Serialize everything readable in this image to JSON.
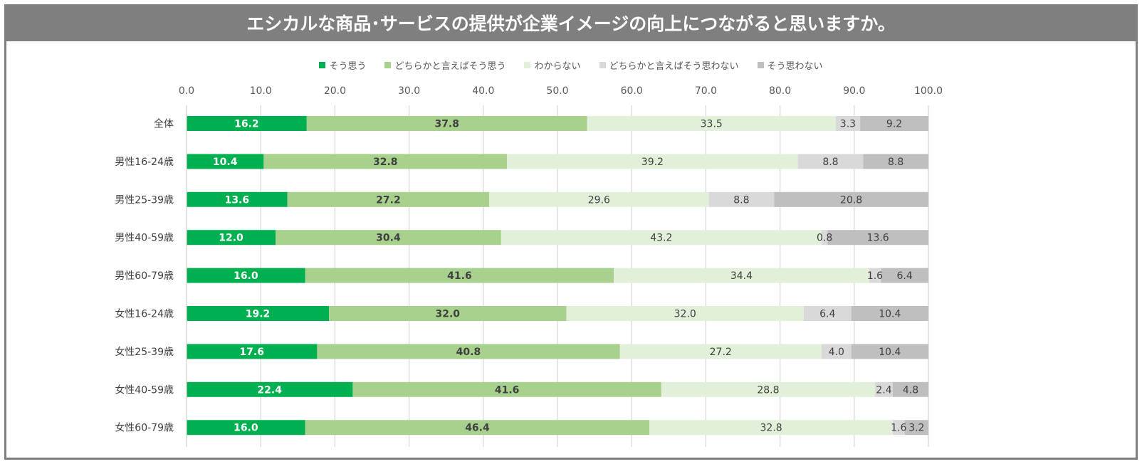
{
  "title": "エシカルな商品･サービスの提供が企業イメージの向上につながると思いますか。",
  "chart_data": {
    "type": "bar",
    "orientation": "horizontal",
    "stacked": true,
    "title": "エシカルな商品･サービスの提供が企業イメージの向上につながると思いますか。",
    "xlim": [
      0,
      100
    ],
    "xticks": [
      "0.0",
      "10.0",
      "20.0",
      "30.0",
      "40.0",
      "50.0",
      "60.0",
      "70.0",
      "80.0",
      "90.0",
      "100.0"
    ],
    "grid": true,
    "legend_position": "top",
    "categories": [
      "全体",
      "男性16-24歳",
      "男性25-39歳",
      "男性40-59歳",
      "男性60-79歳",
      "女性16-24歳",
      "女性25-39歳",
      "女性40-59歳",
      "女性60-79歳"
    ],
    "series": [
      {
        "name": "そう思う",
        "color": "#00b050",
        "label_color": "#ffffff",
        "label_bold": true,
        "values": [
          16.2,
          10.4,
          13.6,
          12.0,
          16.0,
          19.2,
          17.6,
          22.4,
          16.0
        ],
        "labels": [
          "16.2",
          "10.4",
          "13.6",
          "12.0",
          "16.0",
          "19.2",
          "17.6",
          "22.4",
          "16.0"
        ]
      },
      {
        "name": "どちらかと言えばそう思う",
        "color": "#a9d18e",
        "label_color": "#404040",
        "label_bold": true,
        "values": [
          37.8,
          32.8,
          27.2,
          30.4,
          41.6,
          32.0,
          40.8,
          41.6,
          46.4
        ],
        "labels": [
          "37.8",
          "32.8",
          "27.2",
          "30.4",
          "41.6",
          "32.0",
          "40.8",
          "41.6",
          "46.4"
        ]
      },
      {
        "name": "わからない",
        "color": "#e2f0d9",
        "label_color": "#404040",
        "label_bold": false,
        "values": [
          33.5,
          39.2,
          29.6,
          43.2,
          34.4,
          32.0,
          27.2,
          28.8,
          32.8
        ],
        "labels": [
          "33.5",
          "39.2",
          "29.6",
          "43.2",
          "34.4",
          "32.0",
          "27.2",
          "28.8",
          "32.8"
        ]
      },
      {
        "name": "どちらかと言えばそう思わない",
        "color": "#d9d9d9",
        "label_color": "#404040",
        "label_bold": false,
        "values": [
          3.3,
          8.8,
          8.8,
          0.8,
          1.6,
          6.4,
          4.0,
          2.4,
          1.6
        ],
        "labels": [
          "3.3",
          "8.8",
          "8.8",
          "0.8",
          "1.6",
          "6.4",
          "4.0",
          "2.4",
          "1.6"
        ]
      },
      {
        "name": "そう思わない",
        "color": "#bfbfbf",
        "label_color": "#404040",
        "label_bold": false,
        "values": [
          9.2,
          8.8,
          20.8,
          13.6,
          6.4,
          10.4,
          10.4,
          4.8,
          3.2
        ],
        "labels": [
          "9.2",
          "8.8",
          "20.8",
          "13.6",
          "6.4",
          "10.4",
          "10.4",
          "4.8",
          "3.2"
        ]
      }
    ]
  }
}
